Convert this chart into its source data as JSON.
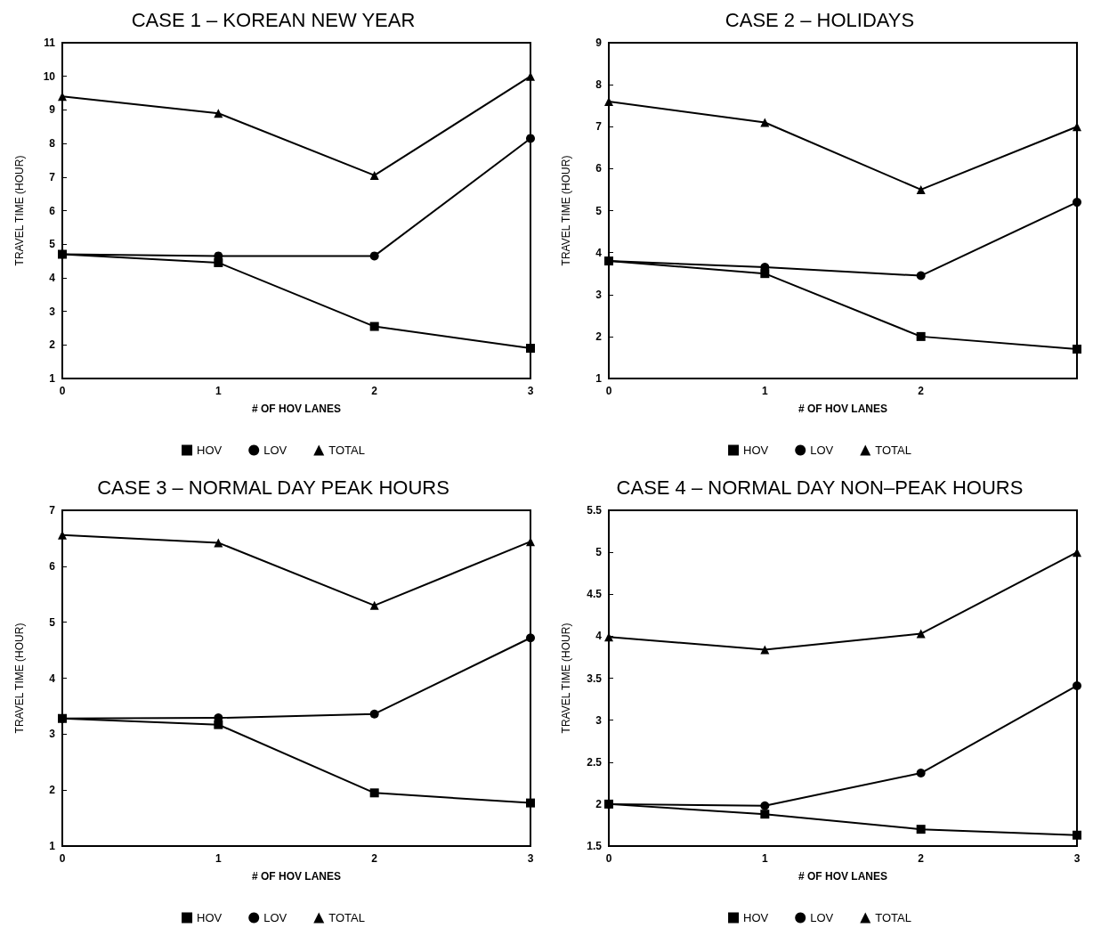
{
  "chart_data": [
    {
      "type": "line",
      "title": "CASE 1 – KOREAN NEW YEAR",
      "xlabel": "# OF HOV LANES",
      "ylabel": "TRAVEL TIME (HOUR)",
      "categories": [
        "0",
        "1",
        "2",
        "3"
      ],
      "ylim": [
        1,
        11
      ],
      "yticks": [
        1,
        2,
        3,
        4,
        5,
        6,
        7,
        8,
        9,
        10,
        11
      ],
      "legend": "bottom",
      "grid": false,
      "line_style": "solid",
      "series": [
        {
          "name": "HOV",
          "color": "#000000",
          "marker": "square",
          "values": [
            4.7,
            4.45,
            2.55,
            1.9
          ]
        },
        {
          "name": "LOV",
          "color": "#000000",
          "marker": "circle",
          "values": [
            4.7,
            4.65,
            4.65,
            8.15
          ]
        },
        {
          "name": "TOTAL",
          "color": "#000000",
          "marker": "triangle",
          "values": [
            9.4,
            8.9,
            7.05,
            10.0
          ]
        }
      ]
    },
    {
      "type": "line",
      "title": "CASE 2 – HOLIDAYS",
      "xlabel": "# OF HOV LANES",
      "ylabel": "TRAVEL TIME (HOUR)",
      "categories": [
        "0",
        "1",
        "2",
        null
      ],
      "ylim": [
        1,
        9
      ],
      "yticks": [
        1,
        2,
        3,
        4,
        5,
        6,
        7,
        8,
        9
      ],
      "legend": "bottom",
      "grid": false,
      "line_style": "solid",
      "series": [
        {
          "name": "HOV",
          "color": "#000000",
          "marker": "square",
          "values": [
            3.8,
            3.5,
            2.0,
            1.7
          ]
        },
        {
          "name": "LOV",
          "color": "#000000",
          "marker": "circle",
          "values": [
            3.8,
            3.65,
            3.45,
            5.2
          ]
        },
        {
          "name": "TOTAL",
          "color": "#000000",
          "marker": "triangle",
          "values": [
            7.6,
            7.1,
            5.5,
            7.0
          ]
        }
      ]
    },
    {
      "type": "line",
      "title": "CASE 3 – NORMAL DAY PEAK HOURS",
      "xlabel": "# OF HOV LANES",
      "ylabel": "TRAVEL TIME (HOUR)",
      "categories": [
        "0",
        "1",
        "2",
        "3"
      ],
      "ylim": [
        1,
        7
      ],
      "yticks": [
        1,
        2,
        3,
        4,
        5,
        6,
        7
      ],
      "legend": "bottom",
      "grid": false,
      "line_style": "solid",
      "series": [
        {
          "name": "HOV",
          "color": "#000000",
          "marker": "square",
          "values": [
            3.28,
            3.17,
            1.95,
            1.77
          ]
        },
        {
          "name": "LOV",
          "color": "#000000",
          "marker": "circle",
          "values": [
            3.28,
            3.29,
            3.36,
            4.72
          ]
        },
        {
          "name": "TOTAL",
          "color": "#000000",
          "marker": "triangle",
          "values": [
            6.56,
            6.42,
            5.3,
            6.44
          ]
        }
      ]
    },
    {
      "type": "line",
      "title": "CASE 4 – NORMAL DAY NON–PEAK HOURS",
      "xlabel": "# OF HOV LANES",
      "ylabel": "TRAVEL TIME (HOUR)",
      "categories": [
        "0",
        "1",
        "2",
        "3"
      ],
      "ylim": [
        1.5,
        5.5
      ],
      "yticks": [
        1.5,
        2,
        2.5,
        3,
        3.5,
        4,
        4.5,
        5,
        5.5
      ],
      "legend": "bottom",
      "grid": false,
      "line_style": "solid",
      "series": [
        {
          "name": "HOV",
          "color": "#000000",
          "marker": "square",
          "values": [
            2.0,
            1.88,
            1.7,
            1.63
          ]
        },
        {
          "name": "LOV",
          "color": "#000000",
          "marker": "circle",
          "values": [
            2.0,
            1.98,
            2.37,
            3.41
          ]
        },
        {
          "name": "TOTAL",
          "color": "#000000",
          "marker": "triangle",
          "values": [
            3.99,
            3.84,
            4.03,
            5.0
          ]
        }
      ]
    }
  ]
}
